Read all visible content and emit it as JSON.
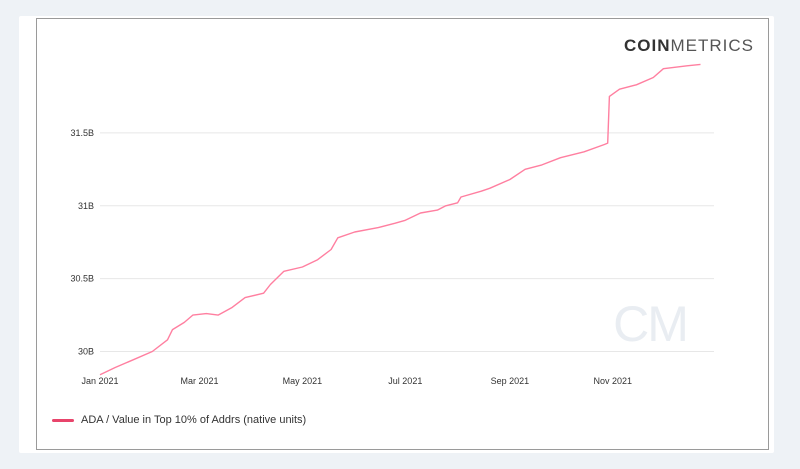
{
  "brand": {
    "part1": "COIN",
    "part2": "METRICS"
  },
  "chart_data": {
    "type": "line",
    "title": "",
    "xlabel": "",
    "ylabel": "",
    "x_ticks": [
      "Jan 2021",
      "Mar 2021",
      "May 2021",
      "Jul 2021",
      "Sep 2021",
      "Nov 2021"
    ],
    "y_ticks": [
      "30B",
      "30.5B",
      "31B",
      "31.5B"
    ],
    "ylim": [
      29.88,
      32.0
    ],
    "grid": true,
    "legend_position": "bottom-left",
    "watermark": "CM",
    "series": [
      {
        "name": "ADA / Value in Top 10% of Addrs (native units)",
        "color": "#ff7fa0",
        "points": [
          [
            "2021-01-01",
            29.84
          ],
          [
            "2021-01-10",
            29.89
          ],
          [
            "2021-01-20",
            29.94
          ],
          [
            "2021-02-01",
            30.0
          ],
          [
            "2021-02-10",
            30.08
          ],
          [
            "2021-02-13",
            30.15
          ],
          [
            "2021-02-20",
            30.2
          ],
          [
            "2021-02-25",
            30.25
          ],
          [
            "2021-03-05",
            30.26
          ],
          [
            "2021-03-12",
            30.25
          ],
          [
            "2021-03-20",
            30.3
          ],
          [
            "2021-03-28",
            30.37
          ],
          [
            "2021-04-08",
            30.4
          ],
          [
            "2021-04-12",
            30.46
          ],
          [
            "2021-04-20",
            30.55
          ],
          [
            "2021-05-01",
            30.58
          ],
          [
            "2021-05-10",
            30.63
          ],
          [
            "2021-05-18",
            30.7
          ],
          [
            "2021-05-22",
            30.78
          ],
          [
            "2021-06-01",
            30.82
          ],
          [
            "2021-06-15",
            30.85
          ],
          [
            "2021-06-25",
            30.88
          ],
          [
            "2021-07-01",
            30.9
          ],
          [
            "2021-07-10",
            30.95
          ],
          [
            "2021-07-20",
            30.97
          ],
          [
            "2021-07-25",
            31.0
          ],
          [
            "2021-08-01",
            31.02
          ],
          [
            "2021-08-03",
            31.06
          ],
          [
            "2021-08-15",
            31.1
          ],
          [
            "2021-08-20",
            31.12
          ],
          [
            "2021-09-01",
            31.18
          ],
          [
            "2021-09-10",
            31.25
          ],
          [
            "2021-09-20",
            31.28
          ],
          [
            "2021-10-01",
            31.33
          ],
          [
            "2021-10-15",
            31.37
          ],
          [
            "2021-10-27",
            31.42
          ],
          [
            "2021-10-29",
            31.43
          ],
          [
            "2021-10-30",
            31.75
          ],
          [
            "2021-11-05",
            31.8
          ],
          [
            "2021-11-15",
            31.83
          ],
          [
            "2021-11-25",
            31.88
          ],
          [
            "2021-12-01",
            31.94
          ],
          [
            "2021-12-15",
            31.96
          ],
          [
            "2021-12-23",
            31.97
          ]
        ]
      }
    ]
  }
}
